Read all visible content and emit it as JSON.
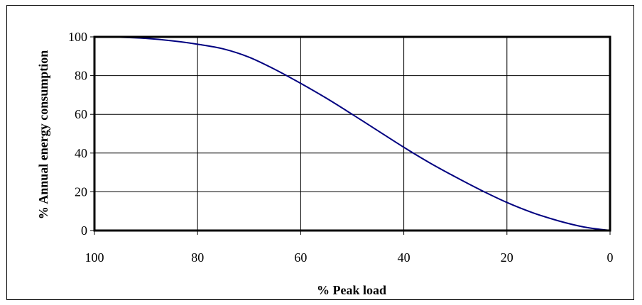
{
  "chart_data": {
    "type": "line",
    "title": "",
    "xlabel": "% Peak load",
    "ylabel": "% Annual energy consumption",
    "xlim": [
      100,
      0
    ],
    "ylim": [
      0,
      100
    ],
    "x_reversed": true,
    "x_ticks": [
      100,
      80,
      60,
      40,
      20,
      0
    ],
    "y_ticks": [
      0,
      20,
      40,
      60,
      80,
      100
    ],
    "x_tick_labels": [
      "100",
      "80",
      "60",
      "40",
      "20",
      "0"
    ],
    "y_tick_labels": [
      "0",
      "20",
      "40",
      "60",
      "80",
      "100"
    ],
    "grid": true,
    "legend": "none",
    "colors": {
      "line": "#000080",
      "axis": "#000000",
      "grid": "#000000"
    },
    "series": [
      {
        "x": [
          100,
          95,
          90,
          85,
          80,
          75,
          70,
          65,
          60,
          55,
          50,
          45,
          40,
          35,
          30,
          25,
          20,
          15,
          10,
          5,
          0
        ],
        "values": [
          100,
          99.8,
          99.2,
          98,
          96.2,
          93.8,
          89.5,
          83.2,
          76,
          68.3,
          60,
          51.5,
          43,
          35,
          27.7,
          20.8,
          14.5,
          9.2,
          5,
          1.8,
          0
        ]
      }
    ]
  }
}
